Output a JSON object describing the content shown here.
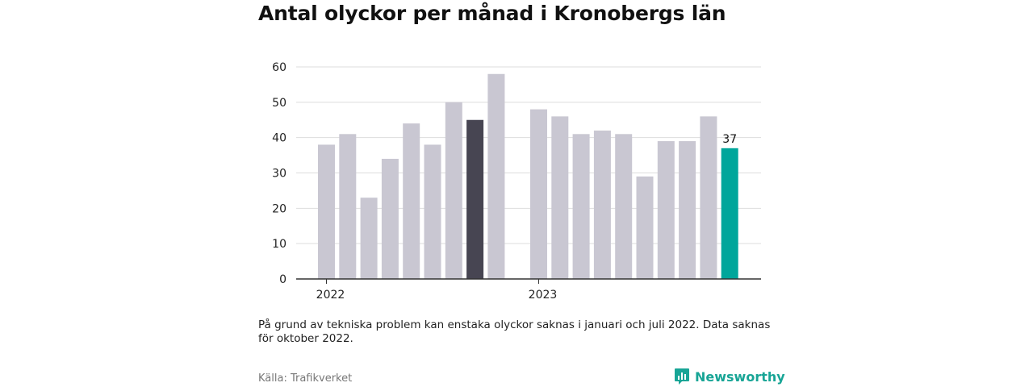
{
  "title": "Antal olyckor per månad i Kronobergs län",
  "chart_data": {
    "type": "bar",
    "title": "Antal olyckor per månad i Kronobergs län",
    "xlabel": "",
    "ylabel": "",
    "ylim": [
      0,
      60
    ],
    "yticks": [
      0,
      10,
      20,
      30,
      40,
      50,
      60
    ],
    "grid": true,
    "year_labels": [
      "2022",
      "2023"
    ],
    "series": [
      {
        "values": [
          38,
          41,
          23,
          34,
          44,
          38,
          50,
          45,
          58,
          null,
          48,
          46,
          41,
          42,
          41,
          29,
          39,
          39,
          46,
          37
        ]
      }
    ],
    "highlight_index": 7,
    "last_index": 19,
    "data_labels": [
      {
        "index": 19,
        "text": "37"
      }
    ],
    "colors": {
      "default": "#c9c7d2",
      "highlight": "#474552",
      "latest": "#00a69b",
      "grid": "#dddddd",
      "axis": "#333333"
    }
  },
  "note": "På grund av tekniska problem kan enstaka olyckor saknas i januari och juli 2022. Data saknas för oktober 2022.",
  "source": "Källa: Trafikverket",
  "brand": {
    "name": "Newsworthy",
    "color": "#18a596",
    "icon": "bar-chart-icon"
  }
}
